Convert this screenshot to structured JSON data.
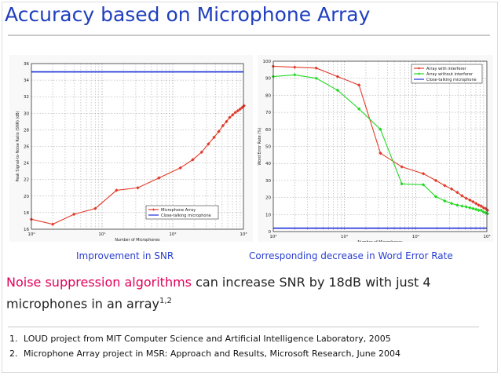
{
  "slide": {
    "title": "Accuracy based on Microphone Array",
    "caption_left": "Improvement in SNR",
    "caption_right": "Corresponding decrease in Word Error Rate",
    "body_highlight": "Noise suppression algorithms",
    "body_rest": " can increase SNR by 18dB with just 4 microphones in an array",
    "body_sup": "1,2",
    "references": [
      {
        "num": "1.",
        "text": "LOUD project from  MIT Computer Science and Artificial Intelligence Laboratory, 2005"
      },
      {
        "num": "2.",
        "text": "Microphone Array project in MSR: Approach and Results, Microsoft Research, June 2004"
      }
    ],
    "colors": {
      "title": "#1f3fbf",
      "highlight": "#e0005a",
      "caption": "#2a3fd0"
    }
  },
  "chart_data": [
    {
      "type": "line",
      "xscale": "log",
      "xlim": [
        1,
        1000
      ],
      "ylim": [
        16,
        36
      ],
      "xticks": [
        1,
        10,
        100,
        1000
      ],
      "xtick_labels": [
        "10⁰",
        "10¹",
        "10²",
        "10³"
      ],
      "yticks": [
        16,
        18,
        20,
        22,
        24,
        26,
        28,
        30,
        32,
        34,
        36
      ],
      "xlabel": "Number of Microphones",
      "ylabel": "Peak Signal-to-Noise Ratio (SNR) (dB)",
      "grid": true,
      "legend_position": "bottom-right",
      "series": [
        {
          "name": "Microphone Array",
          "color": "#e23a2a",
          "marker": "diamond",
          "x": [
            1,
            2,
            4,
            8,
            16,
            32,
            64,
            128,
            192,
            256,
            320,
            384,
            448,
            512,
            576,
            640,
            704,
            768,
            832,
            896,
            960,
            1020
          ],
          "y": [
            17.2,
            16.6,
            17.8,
            18.5,
            20.7,
            21.0,
            22.2,
            23.4,
            24.4,
            25.3,
            26.3,
            27.1,
            27.8,
            28.5,
            29.0,
            29.5,
            29.8,
            30.1,
            30.3,
            30.5,
            30.7,
            30.9
          ]
        },
        {
          "name": "Close-talking microphone",
          "color": "#1d2fd8",
          "marker": "none",
          "x": [
            1,
            1000
          ],
          "y": [
            35,
            35
          ]
        }
      ]
    },
    {
      "type": "line",
      "xscale": "log",
      "xlim": [
        1,
        1000
      ],
      "ylim": [
        0,
        100
      ],
      "xticks": [
        1,
        10,
        100,
        1000
      ],
      "xtick_labels": [
        "10⁰",
        "10¹",
        "10²",
        "10³"
      ],
      "yticks": [
        0,
        10,
        20,
        30,
        40,
        50,
        60,
        70,
        80,
        90,
        100
      ],
      "xlabel": "Number of Microphones",
      "ylabel": "Word Error Rate (%)",
      "grid": true,
      "legend_position": "top-right",
      "series": [
        {
          "name": "Array with interferer",
          "color": "#e23a2a",
          "marker": "diamond",
          "x": [
            1,
            2,
            4,
            8,
            16,
            32,
            64,
            128,
            192,
            256,
            320,
            384,
            448,
            512,
            576,
            640,
            704,
            768,
            832,
            896,
            960,
            1020
          ],
          "y": [
            97,
            96.5,
            96,
            91,
            86,
            46,
            38,
            34,
            30,
            27,
            25,
            23,
            21,
            19.5,
            18.5,
            17.5,
            16.5,
            15.5,
            15,
            14,
            13.5,
            12.5
          ]
        },
        {
          "name": "Array without interferer",
          "color": "#22d922",
          "marker": "diamond",
          "x": [
            1,
            2,
            4,
            8,
            16,
            32,
            64,
            128,
            192,
            256,
            320,
            384,
            448,
            512,
            576,
            640,
            704,
            768,
            832,
            896,
            960,
            1020
          ],
          "y": [
            91,
            92,
            90,
            83,
            72,
            60,
            28,
            27.5,
            20.5,
            18,
            16.5,
            15.5,
            15,
            14.5,
            14,
            13.5,
            13,
            12.5,
            12.5,
            11.5,
            11,
            10.5
          ]
        },
        {
          "name": "Close-talking microphone",
          "color": "#1d2fd8",
          "marker": "none",
          "x": [
            1,
            1000
          ],
          "y": [
            2,
            2
          ]
        }
      ]
    }
  ]
}
